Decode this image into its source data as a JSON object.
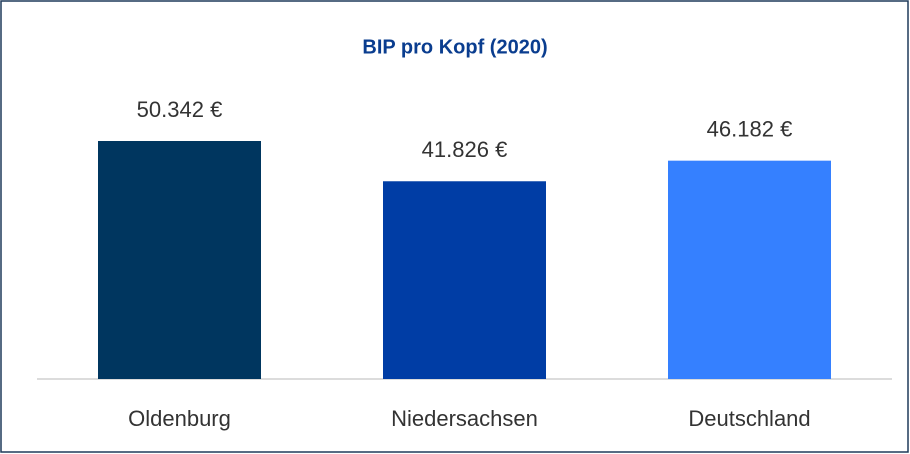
{
  "chart_data": {
    "type": "bar",
    "title": "BIP pro Kopf (2020)",
    "categories": [
      "Oldenburg",
      "Niedersachsen",
      "Deutschland"
    ],
    "values": [
      50342,
      41826,
      46182
    ],
    "value_labels": [
      "50.342 €",
      "41.826 €",
      "46.182 €"
    ],
    "colors": [
      "#00365f",
      "#003da5",
      "#3580ff"
    ]
  }
}
